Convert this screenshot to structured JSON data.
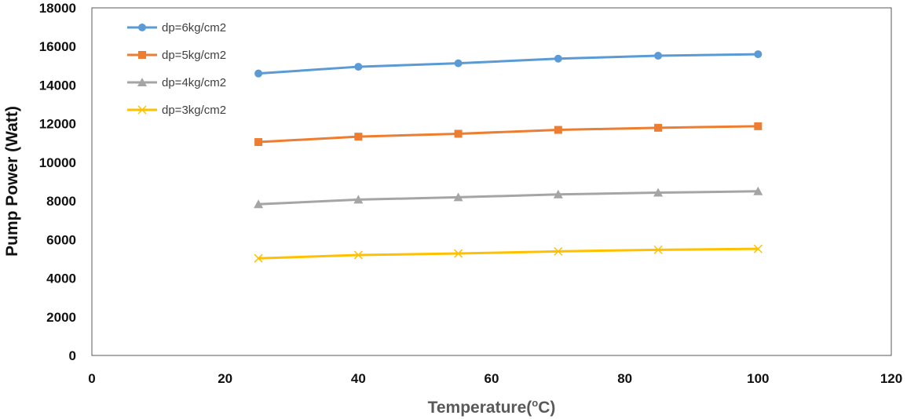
{
  "chart_data": {
    "type": "line",
    "title": "",
    "xlabel": "Temperature(",
    "xlabel_sup": "o",
    "xlabel_end": "C)",
    "ylabel": "Pump Power (Watt)",
    "xlim": [
      0,
      120
    ],
    "ylim": [
      0,
      18000
    ],
    "xticks": [
      0,
      20,
      40,
      60,
      80,
      100,
      120
    ],
    "yticks": [
      0,
      2000,
      4000,
      6000,
      8000,
      10000,
      12000,
      14000,
      16000,
      18000
    ],
    "grid": false,
    "legend_position": "top-left",
    "x": [
      25,
      40,
      55,
      70,
      85,
      100
    ],
    "series": [
      {
        "name": "dp=6kg/cm2",
        "color": "#5B9BD5",
        "marker": "circle",
        "values": [
          14600,
          14950,
          15130,
          15370,
          15520,
          15600
        ]
      },
      {
        "name": "dp=5kg/cm2",
        "color": "#ED7D31",
        "marker": "square",
        "values": [
          11050,
          11330,
          11480,
          11680,
          11790,
          11870
        ]
      },
      {
        "name": "dp=4kg/cm2",
        "color": "#A5A5A5",
        "marker": "triangle",
        "values": [
          7830,
          8070,
          8190,
          8340,
          8430,
          8500
        ]
      },
      {
        "name": "dp=3kg/cm2",
        "color": "#FFC000",
        "marker": "x",
        "values": [
          5030,
          5200,
          5280,
          5390,
          5470,
          5520
        ]
      }
    ]
  }
}
